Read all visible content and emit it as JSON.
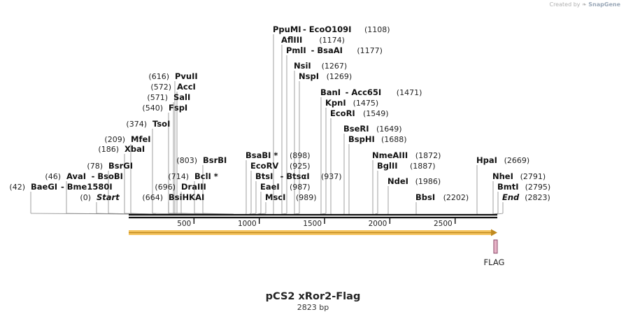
{
  "credit": {
    "text": "Created by",
    "brand": "SnapGene"
  },
  "title": "pCS2 xRor2-Flag",
  "subtitle": "2823 bp",
  "sequence_length": 2823,
  "scale_ticks": [
    "500",
    "1000",
    "1500",
    "2000",
    "2500"
  ],
  "sites": [
    {
      "label": "PpuMI",
      "pos": 1108,
      "pos_label": "(1108)",
      "partner": "EcoO109I"
    },
    {
      "label": "AflIII",
      "pos": 1174,
      "pos_label": "(1174)"
    },
    {
      "label": "PmlI",
      "pos": 1177,
      "pos_label": "(1177)",
      "partner": "BsaAI"
    },
    {
      "label": "NsiI",
      "pos": 1267,
      "pos_label": "(1267)"
    },
    {
      "label": "NspI",
      "pos": 1269,
      "pos_label": "(1269)"
    },
    {
      "label": "BanI",
      "pos": 1471,
      "pos_label": "(1471)",
      "partner": "Acc65I"
    },
    {
      "label": "KpnI",
      "pos": 1475,
      "pos_label": "(1475)"
    },
    {
      "label": "EcoRI",
      "pos": 1549,
      "pos_label": "(1549)"
    },
    {
      "label": "BseRI",
      "pos": 1649,
      "pos_label": "(1649)"
    },
    {
      "label": "BspHI",
      "pos": 1688,
      "pos_label": "(1688)"
    },
    {
      "label": "NmeAIII",
      "pos": 1872,
      "pos_label": "(1872)"
    },
    {
      "label": "BglII",
      "pos": 1887,
      "pos_label": "(1887)"
    },
    {
      "label": "NdeI",
      "pos": 1986,
      "pos_label": "(1986)"
    },
    {
      "label": "BbsI",
      "pos": 2202,
      "pos_label": "(2202)"
    },
    {
      "label": "HpaI",
      "pos": 2669,
      "pos_label": "(2669)"
    },
    {
      "label": "NheI",
      "pos": 2791,
      "pos_label": "(2791)"
    },
    {
      "label": "BmtI",
      "pos": 2795,
      "pos_label": "(2795)"
    },
    {
      "label": "End",
      "pos": 2823,
      "pos_label": "(2823)",
      "italic": true
    },
    {
      "label": "PvuII",
      "pos": 616,
      "pos_label": "(616)"
    },
    {
      "label": "AccI",
      "pos": 572,
      "pos_label": "(572)"
    },
    {
      "label": "SalI",
      "pos": 571,
      "pos_label": "(571)"
    },
    {
      "label": "FspI",
      "pos": 540,
      "pos_label": "(540)"
    },
    {
      "label": "TsoI",
      "pos": 374,
      "pos_label": "(374)"
    },
    {
      "label": "MfeI",
      "pos": 209,
      "pos_label": "(209)"
    },
    {
      "label": "XbaI",
      "pos": 186,
      "pos_label": "(186)"
    },
    {
      "label": "BsrGI",
      "pos": 78,
      "pos_label": "(78)"
    },
    {
      "label": "AvaI",
      "pos": 46,
      "pos_label": "(46)",
      "partner": "BsoBI"
    },
    {
      "label": "BaeGI",
      "pos": 42,
      "pos_label": "(42)",
      "partner": "Bme1580I"
    },
    {
      "label": "Start",
      "pos": 0,
      "pos_label": "(0)",
      "italic": true
    },
    {
      "label": "BsrBI",
      "pos": 803,
      "pos_label": "(803)"
    },
    {
      "label": "BclI *",
      "pos": 714,
      "pos_label": "(714)"
    },
    {
      "label": "DraIII",
      "pos": 696,
      "pos_label": "(696)"
    },
    {
      "label": "BsiHKAI",
      "pos": 664,
      "pos_label": "(664)"
    },
    {
      "label": "BsaBI *",
      "pos": 898,
      "pos_label": "(898)"
    },
    {
      "label": "EcoRV",
      "pos": 925,
      "pos_label": "(925)"
    },
    {
      "label": "BtsI",
      "pos": 937,
      "pos_label": "(937)",
      "partner": "BtsαI"
    },
    {
      "label": "EaeI",
      "pos": 987,
      "pos_label": "(987)"
    },
    {
      "label": "MscI",
      "pos": 989,
      "pos_label": "(989)"
    }
  ],
  "features": [
    {
      "type": "arrow",
      "start": 0,
      "end": 2823,
      "color": "#f5c560",
      "border": "#c08a20"
    },
    {
      "type": "box",
      "label": "FLAG",
      "start": 2796,
      "end": 2823,
      "color": "#e8b4c8",
      "border": "#8a4a6a"
    }
  ]
}
